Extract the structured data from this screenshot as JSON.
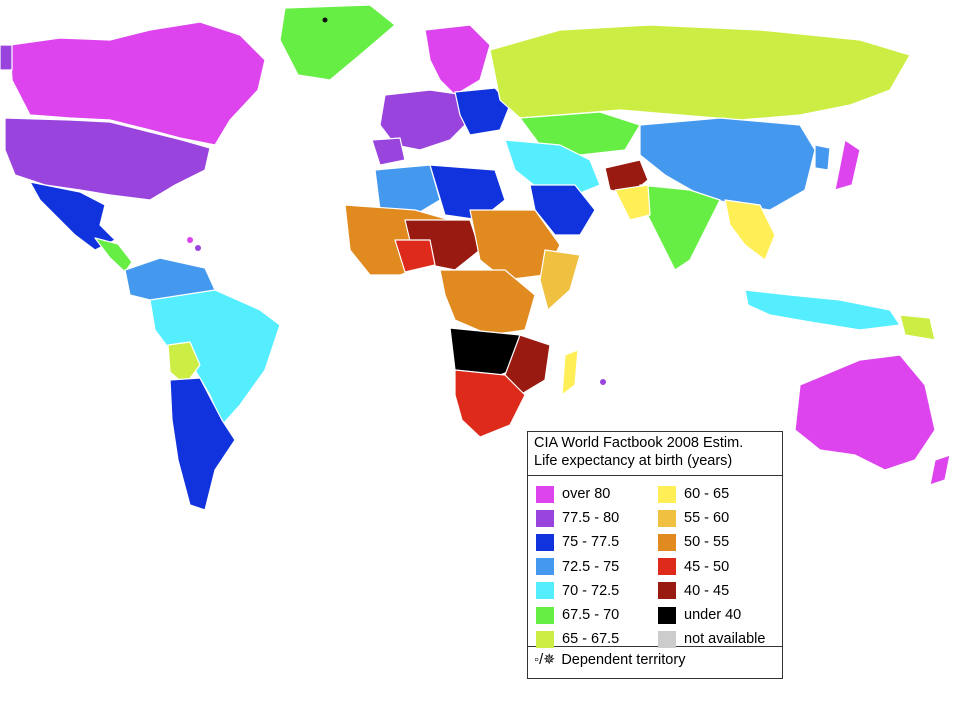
{
  "legend": {
    "title_line1": "CIA World Factbook 2008 Estim.",
    "title_line2": "Life expectancy at birth (years)",
    "items": [
      {
        "label": "over 80",
        "color": "#dd44ee"
      },
      {
        "label": "77.5 - 80",
        "color": "#9944dd"
      },
      {
        "label": "75 - 77.5",
        "color": "#1133dd"
      },
      {
        "label": "72.5 - 75",
        "color": "#4499ee"
      },
      {
        "label": "70 - 72.5",
        "color": "#55eeff"
      },
      {
        "label": "67.5 - 70",
        "color": "#66ee44"
      },
      {
        "label": "65 - 67.5",
        "color": "#ccee44"
      },
      {
        "label": "60 - 65",
        "color": "#ffee55"
      },
      {
        "label": "55 - 60",
        "color": "#f0c040"
      },
      {
        "label": "50 - 55",
        "color": "#e08a20"
      },
      {
        "label": "45 - 50",
        "color": "#dd2a1a"
      },
      {
        "label": "40 - 45",
        "color": "#991a10"
      },
      {
        "label": "under 40",
        "color": "#000000"
      },
      {
        "label": "not available",
        "color": "#cccccc"
      }
    ],
    "footer_symbols": "◦/✵",
    "footer_text": "Dependent territory"
  }
}
